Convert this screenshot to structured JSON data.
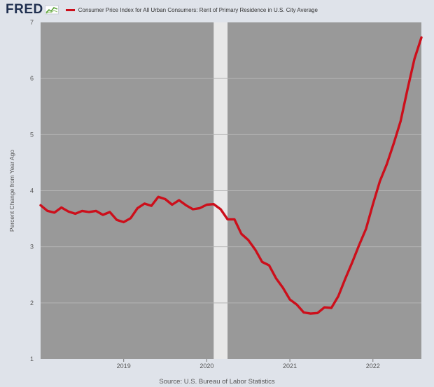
{
  "header": {
    "logo_text": "FRED",
    "legend_label": "Consumer Price Index for All Urban Consumers: Rent of Primary Residence in U.S. City Average"
  },
  "source_text": "Source: U.S. Bureau of Labor Statistics",
  "colors": {
    "line": "#cc0f1b",
    "plot_background": "#999999",
    "recession_band": "#e8e8e8",
    "gridline": "#b5b5b5",
    "frame": "#dfe3ea"
  },
  "chart_data": {
    "type": "line",
    "title": "",
    "xlabel": "",
    "ylabel": "Percent Change from Year Ago",
    "ylim": [
      1,
      7
    ],
    "yticks": [
      1,
      2,
      3,
      4,
      5,
      6,
      7
    ],
    "xlim": [
      "2018-01",
      "2022-08"
    ],
    "xticks": [
      {
        "label": "2019",
        "date": "2019-01"
      },
      {
        "label": "2020",
        "date": "2020-01"
      },
      {
        "label": "2021",
        "date": "2021-01"
      },
      {
        "label": "2022",
        "date": "2022-01"
      }
    ],
    "grid": "horizontal",
    "recession_shading": {
      "start": "2020-02",
      "end": "2020-04"
    },
    "series": [
      {
        "name": "Consumer Price Index for All Urban Consumers: Rent of Primary Residence in U.S. City Average",
        "x": [
          "2018-01",
          "2018-02",
          "2018-03",
          "2018-04",
          "2018-05",
          "2018-06",
          "2018-07",
          "2018-08",
          "2018-09",
          "2018-10",
          "2018-11",
          "2018-12",
          "2019-01",
          "2019-02",
          "2019-03",
          "2019-04",
          "2019-05",
          "2019-06",
          "2019-07",
          "2019-08",
          "2019-09",
          "2019-10",
          "2019-11",
          "2019-12",
          "2020-01",
          "2020-02",
          "2020-03",
          "2020-04",
          "2020-05",
          "2020-06",
          "2020-07",
          "2020-08",
          "2020-09",
          "2020-10",
          "2020-11",
          "2020-12",
          "2021-01",
          "2021-02",
          "2021-03",
          "2021-04",
          "2021-05",
          "2021-06",
          "2021-07",
          "2021-08",
          "2021-09",
          "2021-10",
          "2021-11",
          "2021-12",
          "2022-01",
          "2022-02",
          "2022-03",
          "2022-04",
          "2022-05",
          "2022-06",
          "2022-07",
          "2022-08"
        ],
        "values": [
          3.74,
          3.64,
          3.61,
          3.7,
          3.63,
          3.59,
          3.64,
          3.62,
          3.64,
          3.57,
          3.62,
          3.48,
          3.44,
          3.51,
          3.69,
          3.77,
          3.73,
          3.89,
          3.85,
          3.75,
          3.83,
          3.74,
          3.67,
          3.69,
          3.75,
          3.76,
          3.67,
          3.49,
          3.49,
          3.23,
          3.12,
          2.95,
          2.73,
          2.67,
          2.44,
          2.27,
          2.06,
          1.97,
          1.83,
          1.81,
          1.82,
          1.92,
          1.91,
          2.12,
          2.43,
          2.72,
          3.03,
          3.32,
          3.76,
          4.17,
          4.47,
          4.84,
          5.24,
          5.81,
          6.35,
          6.73
        ]
      }
    ]
  }
}
